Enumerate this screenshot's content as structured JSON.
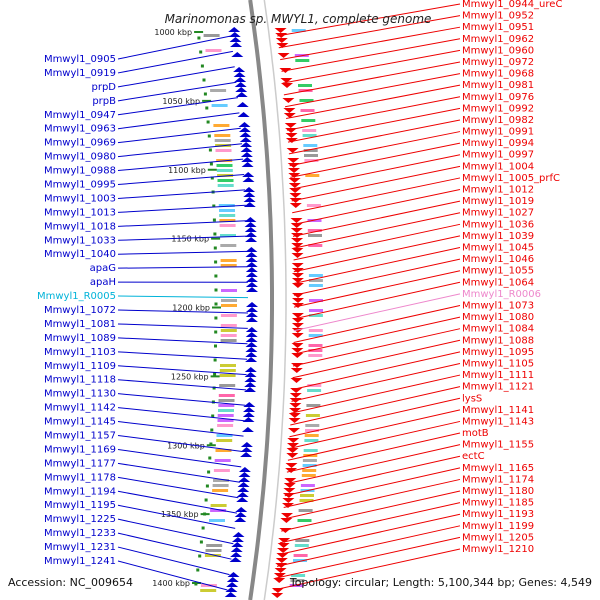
{
  "title": "Marinomonas sp. MWYL1, complete genome",
  "footer": {
    "accession": "Accession: NC_009654",
    "summary": "Topology: circular; Length: 5,100,344 bp; Genes: 4,549"
  },
  "colors": {
    "forward": "#0000cc",
    "reverse": "#ee0000",
    "rna": "#00b3d9",
    "rna_reverse": "#ee88cc",
    "backbone": "#888888",
    "tick": "#228822"
  },
  "ticks": [
    "1000 kbp",
    "1050 kbp",
    "1100 kbp",
    "1150 kbp",
    "1200 kbp",
    "1250 kbp",
    "1300 kbp",
    "1350 kbp",
    "1400 kbp"
  ],
  "left_labels": [
    {
      "text": "Mmwyl1_0905",
      "color": "forward"
    },
    {
      "text": "Mmwyl1_0919",
      "color": "forward"
    },
    {
      "text": "prpD",
      "color": "forward"
    },
    {
      "text": "prpB",
      "color": "forward"
    },
    {
      "text": "Mmwyl1_0947",
      "color": "forward"
    },
    {
      "text": "Mmwyl1_0963",
      "color": "forward"
    },
    {
      "text": "Mmwyl1_0969",
      "color": "forward"
    },
    {
      "text": "Mmwyl1_0980",
      "color": "forward"
    },
    {
      "text": "Mmwyl1_0988",
      "color": "forward"
    },
    {
      "text": "Mmwyl1_0995",
      "color": "forward"
    },
    {
      "text": "Mmwyl1_1003",
      "color": "forward"
    },
    {
      "text": "Mmwyl1_1013",
      "color": "forward"
    },
    {
      "text": "Mmwyl1_1018",
      "color": "forward"
    },
    {
      "text": "Mmwyl1_1033",
      "color": "forward"
    },
    {
      "text": "Mmwyl1_1040",
      "color": "forward"
    },
    {
      "text": "apaG",
      "color": "forward"
    },
    {
      "text": "apaH",
      "color": "forward"
    },
    {
      "text": "Mmwyl1_R0005",
      "color": "rna"
    },
    {
      "text": "Mmwyl1_1072",
      "color": "forward"
    },
    {
      "text": "Mmwyl1_1081",
      "color": "forward"
    },
    {
      "text": "Mmwyl1_1089",
      "color": "forward"
    },
    {
      "text": "Mmwyl1_1103",
      "color": "forward"
    },
    {
      "text": "Mmwyl1_1109",
      "color": "forward"
    },
    {
      "text": "Mmwyl1_1118",
      "color": "forward"
    },
    {
      "text": "Mmwyl1_1130",
      "color": "forward"
    },
    {
      "text": "Mmwyl1_1142",
      "color": "forward"
    },
    {
      "text": "Mmwyl1_1145",
      "color": "forward"
    },
    {
      "text": "Mmwyl1_1157",
      "color": "forward"
    },
    {
      "text": "Mmwyl1_1169",
      "color": "forward"
    },
    {
      "text": "Mmwyl1_1177",
      "color": "forward"
    },
    {
      "text": "Mmwyl1_1178",
      "color": "forward"
    },
    {
      "text": "Mmwyl1_1194",
      "color": "forward"
    },
    {
      "text": "Mmwyl1_1195",
      "color": "forward"
    },
    {
      "text": "Mmwyl1_1225",
      "color": "forward"
    },
    {
      "text": "Mmwyl1_1233",
      "color": "forward"
    },
    {
      "text": "Mmwyl1_1231",
      "color": "forward"
    },
    {
      "text": "Mmwyl1_1241",
      "color": "forward"
    }
  ],
  "right_labels": [
    {
      "text": "Mmwyl1_0944_ureC",
      "color": "reverse"
    },
    {
      "text": "Mmwyl1_0952",
      "color": "reverse"
    },
    {
      "text": "Mmwyl1_0951",
      "color": "reverse"
    },
    {
      "text": "Mmwyl1_0962",
      "color": "reverse"
    },
    {
      "text": "Mmwyl1_0960",
      "color": "reverse"
    },
    {
      "text": "Mmwyl1_0972",
      "color": "reverse"
    },
    {
      "text": "Mmwyl1_0968",
      "color": "reverse"
    },
    {
      "text": "Mmwyl1_0981",
      "color": "reverse"
    },
    {
      "text": "Mmwyl1_0976",
      "color": "reverse"
    },
    {
      "text": "Mmwyl1_0992",
      "color": "reverse"
    },
    {
      "text": "Mmwyl1_0982",
      "color": "reverse"
    },
    {
      "text": "Mmwyl1_0991",
      "color": "reverse"
    },
    {
      "text": "Mmwyl1_0994",
      "color": "reverse"
    },
    {
      "text": "Mmwyl1_0997",
      "color": "reverse"
    },
    {
      "text": "Mmwyl1_1004",
      "color": "reverse"
    },
    {
      "text": "Mmwyl1_1005_prfC",
      "color": "reverse"
    },
    {
      "text": "Mmwyl1_1012",
      "color": "reverse"
    },
    {
      "text": "Mmwyl1_1019",
      "color": "reverse"
    },
    {
      "text": "Mmwyl1_1027",
      "color": "reverse"
    },
    {
      "text": "Mmwyl1_1036",
      "color": "reverse"
    },
    {
      "text": "Mmwyl1_1039",
      "color": "reverse"
    },
    {
      "text": "Mmwyl1_1045",
      "color": "reverse"
    },
    {
      "text": "Mmwyl1_1046",
      "color": "reverse"
    },
    {
      "text": "Mmwyl1_1055",
      "color": "reverse"
    },
    {
      "text": "Mmwyl1_1064",
      "color": "reverse"
    },
    {
      "text": "Mmwyl1_R0006",
      "color": "rna_reverse"
    },
    {
      "text": "Mmwyl1_1073",
      "color": "reverse"
    },
    {
      "text": "Mmwyl1_1080",
      "color": "reverse"
    },
    {
      "text": "Mmwyl1_1084",
      "color": "reverse"
    },
    {
      "text": "Mmwyl1_1088",
      "color": "reverse"
    },
    {
      "text": "Mmwyl1_1095",
      "color": "reverse"
    },
    {
      "text": "Mmwyl1_1105",
      "color": "reverse"
    },
    {
      "text": "Mmwyl1_1111",
      "color": "reverse"
    },
    {
      "text": "Mmwyl1_1121",
      "color": "reverse"
    },
    {
      "text": "lysS",
      "color": "reverse"
    },
    {
      "text": "Mmwyl1_1141",
      "color": "reverse"
    },
    {
      "text": "Mmwyl1_1143",
      "color": "reverse"
    },
    {
      "text": "motB",
      "color": "reverse"
    },
    {
      "text": "Mmwyl1_1155",
      "color": "reverse"
    },
    {
      "text": "ectC",
      "color": "reverse"
    },
    {
      "text": "Mmwyl1_1165",
      "color": "reverse"
    },
    {
      "text": "Mmwyl1_1174",
      "color": "reverse"
    },
    {
      "text": "Mmwyl1_1180",
      "color": "reverse"
    },
    {
      "text": "Mmwyl1_1185",
      "color": "reverse"
    },
    {
      "text": "Mmwyl1_1193",
      "color": "reverse"
    },
    {
      "text": "Mmwyl1_1199",
      "color": "reverse"
    },
    {
      "text": "Mmwyl1_1205",
      "color": "reverse"
    },
    {
      "text": "Mmwyl1_1210",
      "color": "reverse"
    }
  ]
}
